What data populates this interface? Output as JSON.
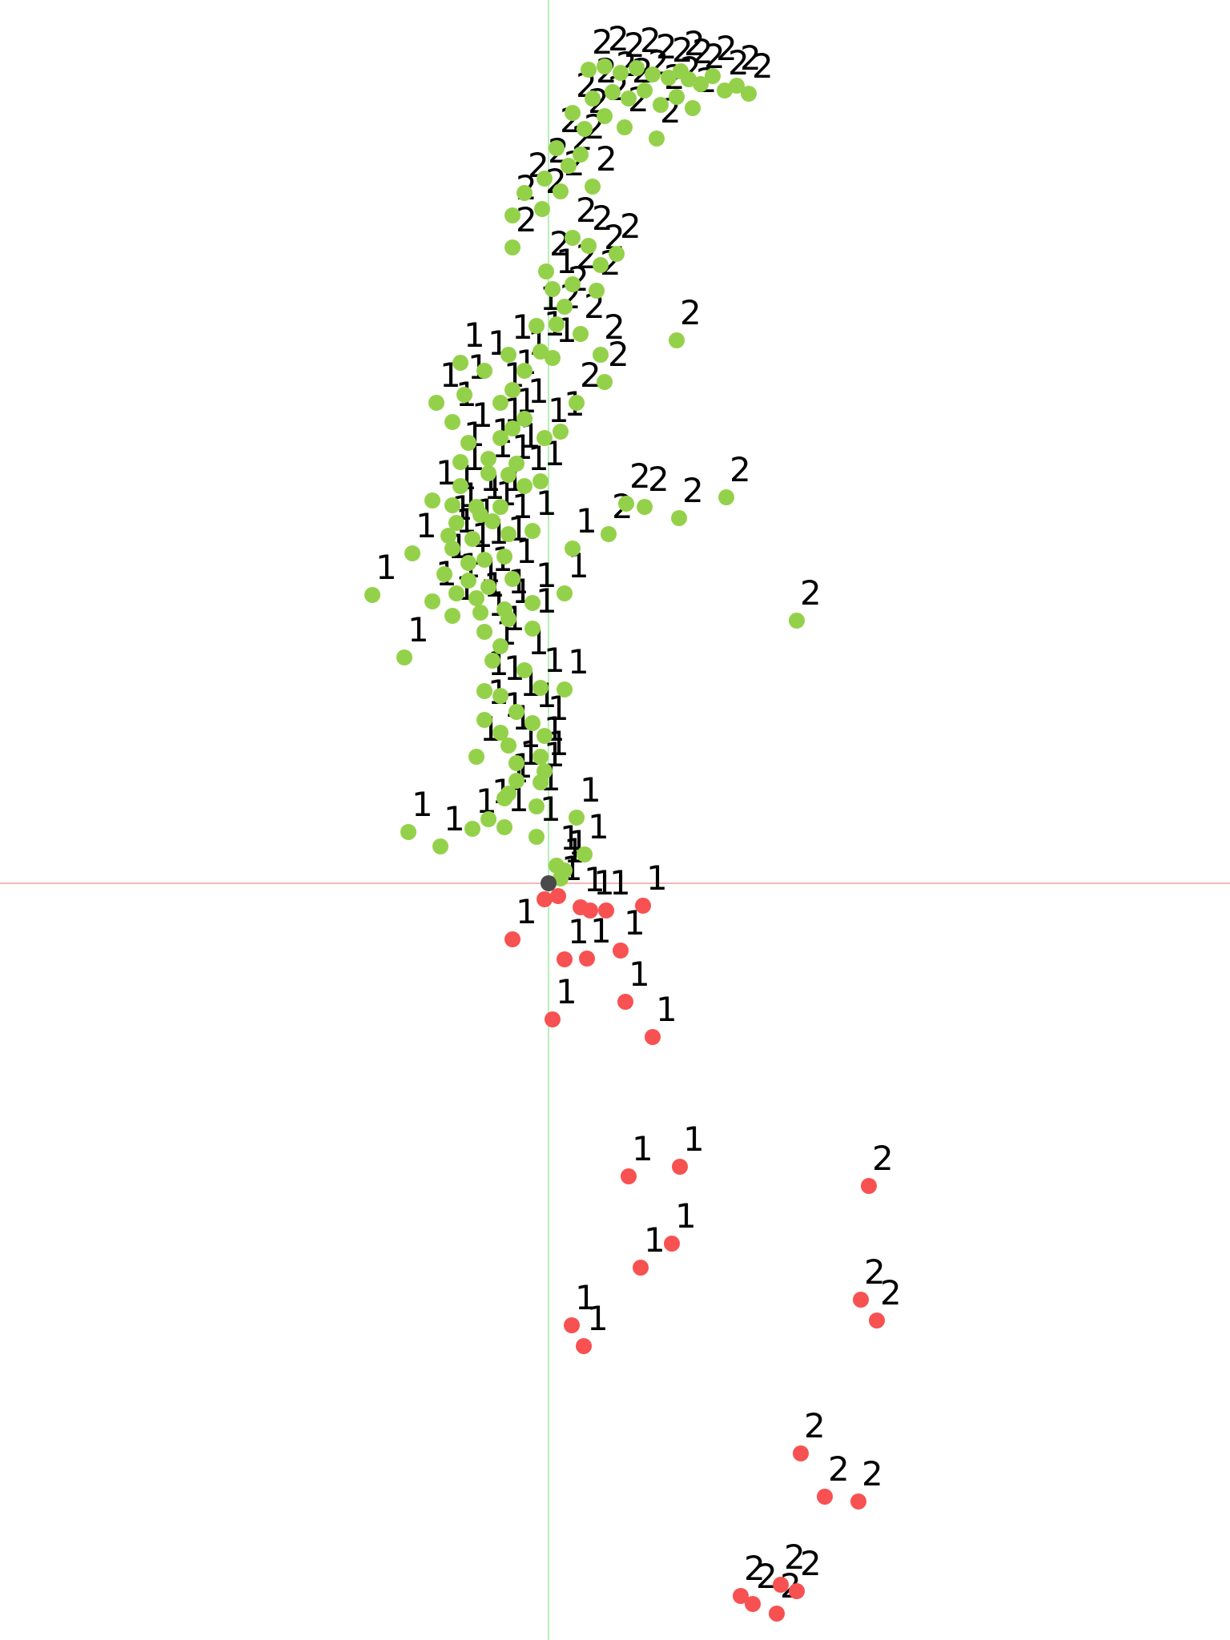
{
  "chart_data": {
    "type": "scatter",
    "title": "",
    "xlabel": "",
    "ylabel": "",
    "xlim": [
      -685,
      851
    ],
    "ylim": [
      -945,
      1103
    ],
    "grid": false,
    "legend": "none",
    "axis_lines": {
      "x_zero_color": "#f4b8b8",
      "y_zero_color": "#b8f0b8"
    },
    "origin_marker_color": "#4a4a4a",
    "series": [
      {
        "color": "#94d14a",
        "points": [
          [
            50,
            1016,
            "2"
          ],
          [
            70,
            1020,
            "2"
          ],
          [
            90,
            1012,
            "2"
          ],
          [
            110,
            1018,
            "2"
          ],
          [
            130,
            1010,
            "2"
          ],
          [
            150,
            1006,
            "2"
          ],
          [
            165,
            1014,
            "2"
          ],
          [
            175,
            1004,
            "2"
          ],
          [
            190,
            998,
            "2"
          ],
          [
            205,
            1008,
            "2"
          ],
          [
            220,
            990,
            "2"
          ],
          [
            235,
            996,
            "2"
          ],
          [
            250,
            986,
            "2"
          ],
          [
            55,
            980,
            "2"
          ],
          [
            80,
            988,
            "2"
          ],
          [
            100,
            980,
            "2"
          ],
          [
            120,
            990,
            "2"
          ],
          [
            140,
            972,
            "2"
          ],
          [
            160,
            982,
            "2"
          ],
          [
            180,
            968,
            "2"
          ],
          [
            30,
            962,
            "2"
          ],
          [
            45,
            942,
            "2"
          ],
          [
            70,
            958,
            "2"
          ],
          [
            95,
            944,
            "2"
          ],
          [
            135,
            930,
            "2"
          ],
          [
            10,
            918,
            "2"
          ],
          [
            25,
            896,
            "2"
          ],
          [
            40,
            910,
            "2"
          ],
          [
            -5,
            880,
            "2"
          ],
          [
            -30,
            862,
            "2"
          ],
          [
            15,
            864,
            "2"
          ],
          [
            55,
            870,
            "2"
          ],
          [
            -45,
            834,
            "2"
          ],
          [
            -8,
            842,
            "2"
          ],
          [
            30,
            806,
            "2"
          ],
          [
            50,
            796,
            "2"
          ],
          [
            85,
            786,
            "2"
          ],
          [
            -45,
            794,
            "2"
          ],
          [
            65,
            772,
            "2"
          ],
          [
            -3,
            764,
            "2"
          ],
          [
            30,
            748,
            "2"
          ],
          [
            60,
            740,
            "2"
          ],
          [
            20,
            720,
            "2"
          ],
          [
            5,
            742,
            "1"
          ],
          [
            -15,
            696,
            "1"
          ],
          [
            10,
            698,
            "2"
          ],
          [
            40,
            686,
            "2"
          ],
          [
            65,
            660,
            "2"
          ],
          [
            160,
            678,
            "2"
          ],
          [
            -10,
            664,
            "1"
          ],
          [
            5,
            656,
            "1"
          ],
          [
            -50,
            660,
            "1"
          ],
          [
            -30,
            640,
            "1"
          ],
          [
            -80,
            640,
            "1"
          ],
          [
            -110,
            650,
            "1"
          ],
          [
            -45,
            616,
            "1"
          ],
          [
            70,
            626,
            "2"
          ],
          [
            -140,
            600,
            "1"
          ],
          [
            -105,
            610,
            "1"
          ],
          [
            -60,
            600,
            "1"
          ],
          [
            35,
            600,
            "2"
          ],
          [
            -30,
            580,
            "1"
          ],
          [
            -45,
            568,
            "1"
          ],
          [
            -120,
            576,
            "1"
          ],
          [
            -60,
            556,
            "1"
          ],
          [
            -5,
            556,
            "1"
          ],
          [
            15,
            564,
            "1"
          ],
          [
            -100,
            550,
            "1"
          ],
          [
            -75,
            530,
            "1"
          ],
          [
            -110,
            526,
            "1"
          ],
          [
            -75,
            512,
            "1"
          ],
          [
            -40,
            524,
            "1"
          ],
          [
            -50,
            510,
            "1"
          ],
          [
            -30,
            496,
            "1"
          ],
          [
            -10,
            502,
            "1"
          ],
          [
            -145,
            478,
            "1"
          ],
          [
            -110,
            496,
            "1"
          ],
          [
            -120,
            472,
            "1"
          ],
          [
            -90,
            470,
            "1"
          ],
          [
            -60,
            470,
            "1"
          ],
          [
            120,
            470,
            "2"
          ],
          [
            97,
            474,
            "2"
          ],
          [
            222,
            482,
            "2"
          ],
          [
            163,
            456,
            "2"
          ],
          [
            -115,
            450,
            "1"
          ],
          [
            -85,
            460,
            "1"
          ],
          [
            -125,
            434,
            "1"
          ],
          [
            -70,
            452,
            "1"
          ],
          [
            -50,
            436,
            "1"
          ],
          [
            -20,
            440,
            "1"
          ],
          [
            -95,
            430,
            "1"
          ],
          [
            75,
            436,
            "2"
          ],
          [
            30,
            418,
            "1"
          ],
          [
            -120,
            418,
            "1"
          ],
          [
            -100,
            400,
            "1"
          ],
          [
            -80,
            404,
            "1"
          ],
          [
            -55,
            408,
            "1"
          ],
          [
            -45,
            380,
            "1"
          ],
          [
            -170,
            412,
            "1"
          ],
          [
            -130,
            386,
            "1"
          ],
          [
            -100,
            378,
            "1"
          ],
          [
            -75,
            370,
            "1"
          ],
          [
            -115,
            362,
            "1"
          ],
          [
            -90,
            356,
            "1"
          ],
          [
            -55,
            342,
            "1"
          ],
          [
            -20,
            350,
            "1"
          ],
          [
            20,
            362,
            "1"
          ],
          [
            -220,
            360,
            "1"
          ],
          [
            -145,
            352,
            "1"
          ],
          [
            -85,
            338,
            "1"
          ],
          [
            -120,
            334,
            "1"
          ],
          [
            -50,
            330,
            "1"
          ],
          [
            -20,
            318,
            "1"
          ],
          [
            -80,
            314,
            "1"
          ],
          [
            -60,
            296,
            "1"
          ],
          [
            -70,
            278,
            "1"
          ],
          [
            -30,
            266,
            "1"
          ],
          [
            -180,
            282,
            "1"
          ],
          [
            -80,
            240,
            "1"
          ],
          [
            -10,
            244,
            "1"
          ],
          [
            -60,
            234,
            "1"
          ],
          [
            20,
            242,
            "1"
          ],
          [
            -40,
            214,
            "1"
          ],
          [
            -80,
            204,
            "1"
          ],
          [
            -20,
            200,
            "1"
          ],
          [
            -60,
            188,
            "1"
          ],
          [
            -50,
            172,
            "1"
          ],
          [
            -5,
            184,
            "1"
          ],
          [
            -90,
            158,
            "1"
          ],
          [
            -40,
            150,
            "1"
          ],
          [
            -10,
            158,
            "1"
          ],
          [
            -40,
            128,
            "1"
          ],
          [
            -5,
            140,
            "1"
          ],
          [
            -55,
            106,
            "1"
          ],
          [
            -10,
            126,
            "1"
          ],
          [
            -75,
            80,
            "1"
          ],
          [
            -50,
            112,
            "1"
          ],
          [
            -15,
            96,
            "1"
          ],
          [
            -95,
            68,
            "1"
          ],
          [
            -55,
            70,
            "1"
          ],
          [
            -15,
            58,
            "1"
          ],
          [
            35,
            82,
            "1"
          ],
          [
            310,
            328,
            "2"
          ],
          [
            -175,
            64,
            "1"
          ],
          [
            -135,
            46,
            "1"
          ],
          [
            45,
            36,
            "1"
          ],
          [
            10,
            22,
            "1"
          ],
          [
            20,
            16,
            "1"
          ],
          [
            15,
            6,
            "1"
          ]
        ]
      },
      {
        "color": "#f85151",
        "points": [
          [
            -5,
            -20,
            "1"
          ],
          [
            12,
            -16,
            "1"
          ],
          [
            40,
            -30,
            "1"
          ],
          [
            52,
            -34,
            "1"
          ],
          [
            72,
            -34,
            "1"
          ],
          [
            118,
            -28,
            "1"
          ],
          [
            -45,
            -70,
            "1"
          ],
          [
            20,
            -95,
            "1"
          ],
          [
            48,
            -94,
            "1"
          ],
          [
            90,
            -84,
            "1"
          ],
          [
            5,
            -170,
            "1"
          ],
          [
            96,
            -148,
            "1"
          ],
          [
            130,
            -192,
            "1"
          ],
          [
            100,
            -366,
            "1"
          ],
          [
            164,
            -354,
            "1"
          ],
          [
            115,
            -480,
            "1"
          ],
          [
            154,
            -450,
            "1"
          ],
          [
            29,
            -552,
            "1"
          ],
          [
            44,
            -578,
            "1"
          ],
          [
            400,
            -378,
            "2"
          ],
          [
            390,
            -520,
            "2"
          ],
          [
            410,
            -546,
            "2"
          ],
          [
            315,
            -712,
            "2"
          ],
          [
            345,
            -766,
            "2"
          ],
          [
            387,
            -772,
            "2"
          ],
          [
            285,
            -912,
            "2"
          ],
          [
            255,
            -900,
            "2"
          ],
          [
            290,
            -876,
            "2"
          ],
          [
            310,
            -884,
            "2"
          ],
          [
            240,
            -890,
            "2"
          ]
        ]
      }
    ]
  }
}
